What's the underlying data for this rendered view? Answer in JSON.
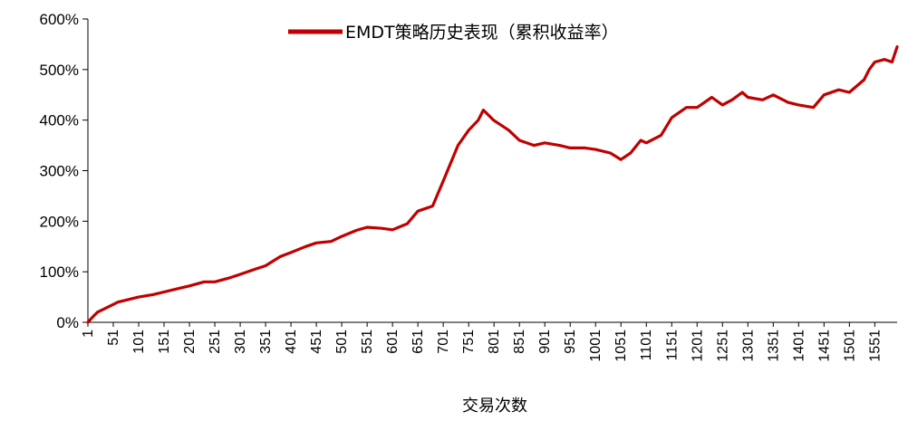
{
  "chart_data": {
    "type": "line",
    "title": "",
    "xlabel": "交易次数",
    "ylabel": "",
    "ylim": [
      0,
      6
    ],
    "y_ticks": [
      0,
      1,
      2,
      3,
      4,
      5,
      6
    ],
    "y_tick_labels": [
      "0%",
      "100%",
      "200%",
      "300%",
      "400%",
      "500%",
      "600%"
    ],
    "x_ticks": [
      1,
      51,
      101,
      151,
      201,
      251,
      301,
      351,
      401,
      451,
      501,
      551,
      601,
      651,
      701,
      751,
      801,
      851,
      901,
      951,
      1001,
      1051,
      1101,
      1151,
      1201,
      1251,
      1301,
      1351,
      1401,
      1451,
      1501,
      1551
    ],
    "x_tick_labels": [
      "1",
      "51",
      "101",
      "151",
      "201",
      "251",
      "301",
      "351",
      "401",
      "451",
      "501",
      "551",
      "601",
      "651",
      "701",
      "751",
      "801",
      "851",
      "901",
      "951",
      "1001",
      "1051",
      "1101",
      "1151",
      "1201",
      "1251",
      "1301",
      "1351",
      "1401",
      "1451",
      "1501",
      "1551"
    ],
    "xlim": [
      1,
      1595
    ],
    "legend_position": "top-center",
    "grid": false,
    "series": [
      {
        "name": "EMDT策略历史表现（累积收益率）",
        "color": "#C00000",
        "x": [
          1,
          10,
          20,
          40,
          60,
          80,
          101,
          130,
          151,
          180,
          201,
          230,
          251,
          280,
          301,
          330,
          351,
          380,
          401,
          430,
          451,
          480,
          501,
          530,
          551,
          580,
          601,
          630,
          651,
          680,
          701,
          730,
          751,
          770,
          780,
          800,
          830,
          851,
          880,
          901,
          930,
          951,
          980,
          1001,
          1030,
          1051,
          1070,
          1090,
          1101,
          1130,
          1151,
          1180,
          1201,
          1230,
          1251,
          1270,
          1290,
          1301,
          1330,
          1351,
          1380,
          1401,
          1430,
          1451,
          1480,
          1501,
          1530,
          1540,
          1551,
          1570,
          1585,
          1590,
          1595
        ],
        "values": [
          0.0,
          0.1,
          0.2,
          0.3,
          0.4,
          0.45,
          0.5,
          0.55,
          0.6,
          0.67,
          0.72,
          0.8,
          0.8,
          0.88,
          0.95,
          1.05,
          1.12,
          1.3,
          1.38,
          1.5,
          1.57,
          1.6,
          1.7,
          1.82,
          1.88,
          1.86,
          1.83,
          1.95,
          2.2,
          2.3,
          2.8,
          3.5,
          3.8,
          4.0,
          4.2,
          4.0,
          3.8,
          3.6,
          3.5,
          3.55,
          3.5,
          3.45,
          3.45,
          3.42,
          3.35,
          3.22,
          3.35,
          3.6,
          3.55,
          3.7,
          4.05,
          4.25,
          4.25,
          4.45,
          4.3,
          4.4,
          4.55,
          4.45,
          4.4,
          4.5,
          4.35,
          4.3,
          4.25,
          4.5,
          4.6,
          4.55,
          4.8,
          5.0,
          5.15,
          5.2,
          5.15,
          5.3,
          5.45
        ]
      }
    ]
  }
}
